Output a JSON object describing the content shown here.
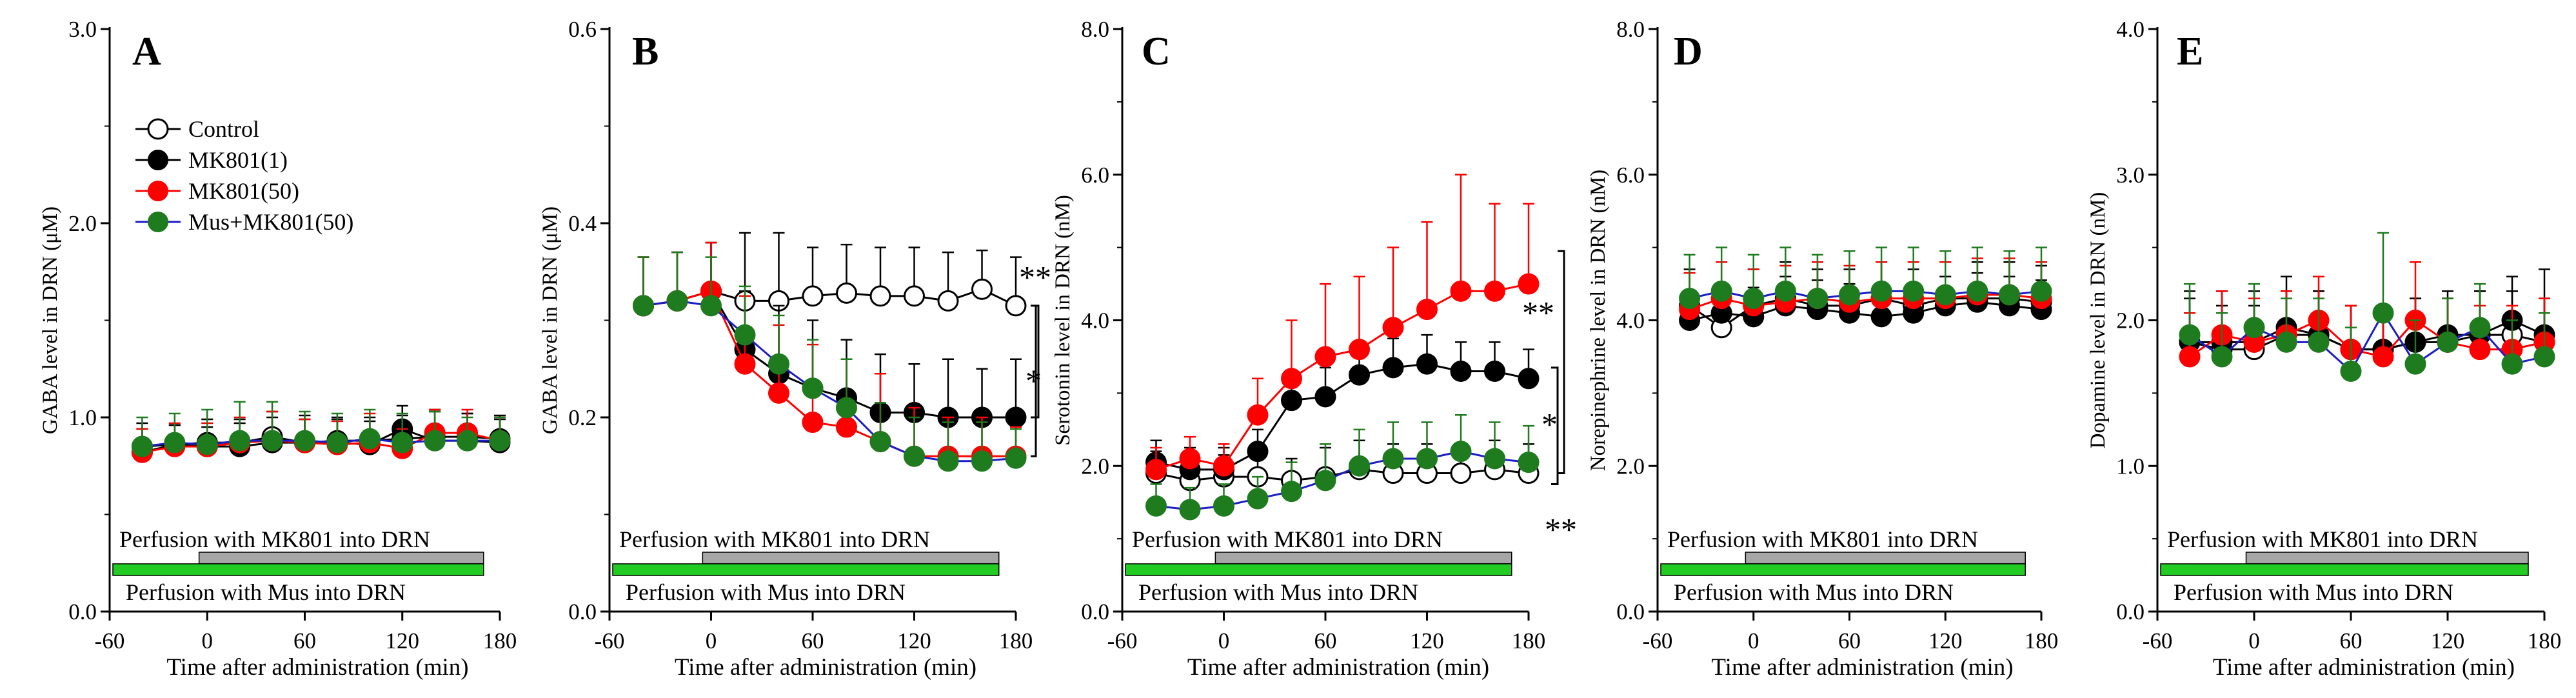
{
  "colors": {
    "control": "#ffffff",
    "mk801_1": "#000000",
    "mk801_50": "#ff0000",
    "mus_mk801_50": "#1e7b1e",
    "mus_line": "#1c1cc8",
    "mus_bar": "#22cc22",
    "mk801_bar": "#a6a6a6"
  },
  "legend": {
    "control": "Control",
    "mk801_1": "MK801(1)",
    "mk801_50": "MK801(50)",
    "mus_mk801_50": "Mus+MK801(50)"
  },
  "chart_data": [
    {
      "type": "line",
      "panel": "A",
      "ylabel": "GABA level in DRN (μM)",
      "xlabel": "Time after administration (min)",
      "xlim": [
        -60,
        180
      ],
      "x_ticks": [
        "-60",
        "0",
        "60",
        "120",
        "180"
      ],
      "ylim": [
        0,
        3
      ],
      "y_ticks": [
        "0.0",
        "1.0",
        "2.0",
        "3.0"
      ],
      "x": [
        -40,
        -20,
        0,
        20,
        40,
        60,
        80,
        100,
        120,
        140,
        160,
        180
      ],
      "perfusion_mk801": "Perfusion with MK801 into DRN",
      "perfusion_mus": "Perfusion with Mus into DRN",
      "series": [
        {
          "name": "Control",
          "values": [
            0.85,
            0.86,
            0.87,
            0.87,
            0.9,
            0.87,
            0.88,
            0.88,
            0.89,
            0.9,
            0.9,
            0.89
          ],
          "errors": [
            0.12,
            0.1,
            0.12,
            0.12,
            0.13,
            0.12,
            0.12,
            0.12,
            0.12,
            0.13,
            0.12,
            0.12
          ]
        },
        {
          "name": "MK801(1)",
          "values": [
            0.82,
            0.86,
            0.85,
            0.85,
            0.87,
            0.87,
            0.87,
            0.86,
            0.94,
            0.88,
            0.88,
            0.87
          ],
          "errors": [
            0.12,
            0.1,
            0.1,
            0.12,
            0.13,
            0.14,
            0.12,
            0.12,
            0.12,
            0.16,
            0.14,
            0.12
          ]
        },
        {
          "name": "MK801(50)",
          "values": [
            0.82,
            0.85,
            0.85,
            0.87,
            0.88,
            0.87,
            0.86,
            0.87,
            0.84,
            0.92,
            0.92,
            0.88
          ],
          "errors": [
            0.12,
            0.12,
            0.12,
            0.13,
            0.15,
            0.12,
            0.12,
            0.15,
            0.1,
            0.12,
            0.12,
            0.12
          ]
        },
        {
          "name": "Mus+MK801(50)",
          "values": [
            0.85,
            0.87,
            0.86,
            0.88,
            0.88,
            0.88,
            0.87,
            0.89,
            0.87,
            0.88,
            0.88,
            0.88
          ],
          "errors": [
            0.15,
            0.15,
            0.18,
            0.2,
            0.2,
            0.15,
            0.15,
            0.15,
            0.15,
            0.15,
            0.12,
            0.12
          ]
        }
      ],
      "annotations": []
    },
    {
      "type": "line",
      "panel": "B",
      "ylabel": "GABA level in DRN (μM)",
      "xlabel": "Time after administration (min)",
      "xlim": [
        -60,
        180
      ],
      "x_ticks": [
        "-60",
        "0",
        "60",
        "120",
        "180"
      ],
      "ylim": [
        0,
        0.6
      ],
      "y_ticks": [
        "0.0",
        "0.2",
        "0.4",
        "0.6"
      ],
      "x": [
        -40,
        -20,
        0,
        20,
        40,
        60,
        80,
        100,
        120,
        140,
        160,
        180
      ],
      "perfusion_mk801": "Perfusion with MK801 into DRN",
      "perfusion_mus": "Perfusion with Mus into DRN",
      "series": [
        {
          "name": "Control",
          "values": [
            0.315,
            0.32,
            0.33,
            0.32,
            0.32,
            0.325,
            0.328,
            0.325,
            0.325,
            0.32,
            0.332,
            0.315
          ],
          "errors": [
            0.05,
            0.05,
            0.05,
            0.07,
            0.07,
            0.05,
            0.05,
            0.05,
            0.05,
            0.05,
            0.04,
            0.05
          ]
        },
        {
          "name": "MK801(1)",
          "values": [
            0.315,
            0.32,
            0.33,
            0.27,
            0.245,
            0.23,
            0.22,
            0.205,
            0.205,
            0.2,
            0.2,
            0.2
          ],
          "errors": [
            0.05,
            0.05,
            0.05,
            0.06,
            0.07,
            0.07,
            0.06,
            0.06,
            0.05,
            0.06,
            0.05,
            0.06
          ]
        },
        {
          "name": "MK801(50)",
          "values": [
            0.315,
            0.32,
            0.33,
            0.255,
            0.225,
            0.195,
            0.19,
            0.175,
            0.16,
            0.16,
            0.16,
            0.16
          ],
          "errors": [
            0.05,
            0.05,
            0.05,
            0.07,
            0.07,
            0.08,
            0.07,
            0.07,
            0.05,
            0.04,
            0.04,
            0.03
          ]
        },
        {
          "name": "Mus+MK801(50)",
          "values": [
            0.315,
            0.32,
            0.315,
            0.285,
            0.255,
            0.23,
            0.21,
            0.175,
            0.16,
            0.155,
            0.155,
            0.158
          ],
          "errors": [
            0.05,
            0.05,
            0.05,
            0.05,
            0.05,
            0.05,
            0.05,
            0.04,
            0.04,
            0.04,
            0.04,
            0.03
          ]
        }
      ],
      "annotations": [
        "**",
        "*"
      ]
    },
    {
      "type": "line",
      "panel": "C",
      "ylabel": "Serotonin level in DRN (nM)",
      "xlabel": "Time after administration (min)",
      "xlim": [
        -60,
        180
      ],
      "x_ticks": [
        "-60",
        "0",
        "60",
        "120",
        "180"
      ],
      "ylim": [
        0,
        8
      ],
      "y_ticks": [
        "0.0",
        "2.0",
        "4.0",
        "6.0",
        "8.0"
      ],
      "x": [
        -40,
        -20,
        0,
        20,
        40,
        60,
        80,
        100,
        120,
        140,
        160,
        180
      ],
      "perfusion_mk801": "Perfusion with MK801 into DRN",
      "perfusion_mus": "Perfusion with Mus into DRN",
      "series": [
        {
          "name": "Control",
          "values": [
            1.9,
            1.8,
            1.85,
            1.85,
            1.8,
            1.85,
            1.95,
            1.9,
            1.9,
            1.9,
            1.95,
            1.9
          ],
          "errors": [
            0.3,
            0.3,
            0.3,
            0.3,
            0.3,
            0.4,
            0.4,
            0.4,
            0.4,
            0.4,
            0.4,
            0.4
          ]
        },
        {
          "name": "MK801(1)",
          "values": [
            2.05,
            1.95,
            1.95,
            2.2,
            2.9,
            2.95,
            3.25,
            3.35,
            3.4,
            3.3,
            3.3,
            3.2
          ],
          "errors": [
            0.3,
            0.3,
            0.3,
            0.3,
            0.4,
            0.4,
            0.4,
            0.4,
            0.4,
            0.4,
            0.4,
            0.4
          ]
        },
        {
          "name": "MK801(50)",
          "values": [
            1.95,
            2.1,
            2.0,
            2.7,
            3.2,
            3.5,
            3.6,
            3.9,
            4.15,
            4.4,
            4.4,
            4.5
          ],
          "errors": [
            0.3,
            0.3,
            0.3,
            0.5,
            0.8,
            1.0,
            1.0,
            1.1,
            1.2,
            1.6,
            1.2,
            1.1
          ]
        },
        {
          "name": "Mus+MK801(50)",
          "values": [
            1.45,
            1.4,
            1.45,
            1.55,
            1.65,
            1.8,
            2.0,
            2.1,
            2.1,
            2.2,
            2.1,
            2.05
          ],
          "errors": [
            0.3,
            0.3,
            0.3,
            0.3,
            0.4,
            0.5,
            0.5,
            0.5,
            0.5,
            0.5,
            0.5,
            0.5
          ]
        }
      ],
      "annotations": [
        "**",
        "*",
        "**"
      ]
    },
    {
      "type": "line",
      "panel": "D",
      "ylabel": "Norepinephrine level in DRN (nM)",
      "xlabel": "Time after administration (min)",
      "xlim": [
        -60,
        180
      ],
      "x_ticks": [
        "-60",
        "0",
        "60",
        "120",
        "180"
      ],
      "ylim": [
        0,
        8
      ],
      "y_ticks": [
        "0.0",
        "2.0",
        "4.0",
        "6.0",
        "8.0"
      ],
      "x": [
        -40,
        -20,
        0,
        20,
        40,
        60,
        80,
        100,
        120,
        140,
        160,
        180
      ],
      "perfusion_mk801": "Perfusion with MK801 into DRN",
      "perfusion_mus": "Perfusion with Mus into DRN",
      "series": [
        {
          "name": "Control",
          "values": [
            4.2,
            3.9,
            4.2,
            4.3,
            4.2,
            4.2,
            4.3,
            4.2,
            4.3,
            4.3,
            4.3,
            4.25
          ],
          "errors": [
            0.5,
            0.6,
            0.5,
            0.5,
            0.5,
            0.5,
            0.5,
            0.5,
            0.5,
            0.5,
            0.5,
            0.5
          ]
        },
        {
          "name": "MK801(1)",
          "values": [
            4.0,
            4.1,
            4.05,
            4.2,
            4.15,
            4.1,
            4.05,
            4.1,
            4.2,
            4.25,
            4.2,
            4.15
          ],
          "errors": [
            0.4,
            0.4,
            0.4,
            0.4,
            0.4,
            0.4,
            0.4,
            0.4,
            0.4,
            0.4,
            0.4,
            0.4
          ]
        },
        {
          "name": "MK801(50)",
          "values": [
            4.15,
            4.3,
            4.2,
            4.25,
            4.3,
            4.25,
            4.3,
            4.3,
            4.3,
            4.35,
            4.35,
            4.3
          ],
          "errors": [
            0.5,
            0.5,
            0.5,
            0.5,
            0.5,
            0.5,
            0.5,
            0.5,
            0.5,
            0.5,
            0.5,
            0.5
          ]
        },
        {
          "name": "Mus+MK801(50)",
          "values": [
            4.3,
            4.4,
            4.3,
            4.4,
            4.3,
            4.35,
            4.4,
            4.4,
            4.35,
            4.4,
            4.35,
            4.4
          ],
          "errors": [
            0.6,
            0.6,
            0.6,
            0.6,
            0.6,
            0.6,
            0.6,
            0.6,
            0.6,
            0.6,
            0.6,
            0.6
          ]
        }
      ],
      "annotations": []
    },
    {
      "type": "line",
      "panel": "E",
      "ylabel": "Dopamine level in DRN (nM)",
      "xlabel": "Time after administration (min)",
      "xlim": [
        -60,
        180
      ],
      "x_ticks": [
        "-60",
        "0",
        "60",
        "120",
        "180"
      ],
      "ylim": [
        0,
        4
      ],
      "y_ticks": [
        "0.0",
        "1.0",
        "2.0",
        "3.0",
        "4.0"
      ],
      "x": [
        -40,
        -20,
        0,
        20,
        40,
        60,
        80,
        100,
        120,
        140,
        160,
        180
      ],
      "perfusion_mk801": "Perfusion with MK801 into DRN",
      "perfusion_mus": "Perfusion with Mus into DRN",
      "series": [
        {
          "name": "Control",
          "values": [
            1.85,
            1.8,
            1.8,
            1.9,
            1.9,
            1.8,
            1.8,
            1.85,
            1.85,
            1.9,
            1.9,
            1.85
          ],
          "errors": [
            0.3,
            0.3,
            0.3,
            0.3,
            0.3,
            0.3,
            0.3,
            0.3,
            0.3,
            0.3,
            0.3,
            0.3
          ]
        },
        {
          "name": "MK801(1)",
          "values": [
            1.85,
            1.85,
            1.85,
            1.95,
            1.9,
            1.8,
            1.8,
            1.85,
            1.9,
            1.9,
            2.0,
            1.9
          ],
          "errors": [
            0.35,
            0.35,
            0.35,
            0.35,
            0.3,
            0.3,
            0.3,
            0.3,
            0.3,
            0.3,
            0.3,
            0.45
          ]
        },
        {
          "name": "MK801(50)",
          "values": [
            1.75,
            1.9,
            1.85,
            1.9,
            2.0,
            1.8,
            1.75,
            2.0,
            1.85,
            1.8,
            1.8,
            1.85
          ],
          "errors": [
            0.3,
            0.3,
            0.3,
            0.3,
            0.3,
            0.3,
            0.3,
            0.4,
            0.3,
            0.3,
            0.3,
            0.3
          ]
        },
        {
          "name": "Mus+MK801(50)",
          "values": [
            1.9,
            1.75,
            1.95,
            1.85,
            1.85,
            1.65,
            2.05,
            1.7,
            1.85,
            1.95,
            1.7,
            1.75
          ],
          "errors": [
            0.35,
            0.3,
            0.3,
            0.3,
            0.3,
            0.3,
            0.55,
            0.3,
            0.3,
            0.3,
            0.3,
            0.3
          ]
        }
      ],
      "annotations": []
    }
  ]
}
